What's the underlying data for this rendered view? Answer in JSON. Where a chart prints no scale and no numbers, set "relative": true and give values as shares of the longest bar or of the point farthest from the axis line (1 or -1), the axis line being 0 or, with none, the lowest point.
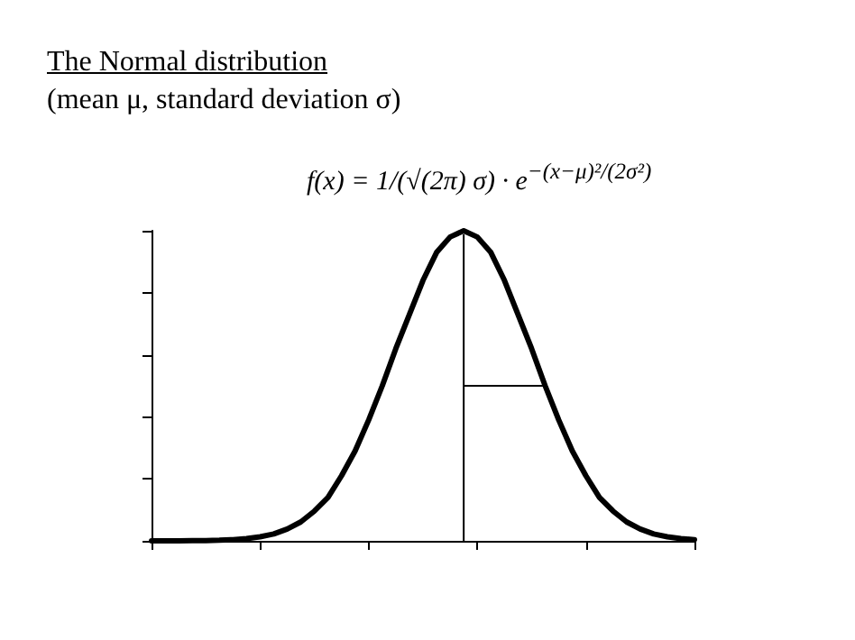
{
  "chart_data": {
    "type": "line",
    "title": "The Normal distribution",
    "subtitle": "(mean μ, standard deviation σ)",
    "annotations": [
      "f(x) = 1/(√(2π) σ) · e$^{−(x−μ)²/(2σ²)}$"
    ],
    "relative": true,
    "grid": false,
    "marker": "none",
    "line_style": "solid",
    "categories": [
      null,
      null,
      null,
      null,
      null,
      null,
      null,
      null,
      null,
      null,
      null,
      null,
      null,
      null,
      null,
      null,
      null,
      null,
      null,
      null,
      null,
      null,
      null,
      null,
      null,
      null,
      null,
      null,
      null,
      null,
      null,
      null,
      null,
      null,
      null,
      null,
      null,
      null,
      null,
      null,
      null
    ],
    "series": [
      {
        "color": "#000000",
        "values": [
          0,
          0,
          0,
          0.001,
          0.001,
          0.002,
          0.004,
          0.007,
          0.013,
          0.022,
          0.038,
          0.061,
          0.096,
          0.14,
          0.21,
          0.29,
          0.39,
          0.5,
          0.62,
          0.73,
          0.84,
          0.93,
          0.98,
          1,
          0.98,
          0.93,
          0.84,
          0.73,
          0.62,
          0.5,
          0.39,
          0.29,
          0.21,
          0.14,
          0.096,
          0.061,
          0.038,
          0.022,
          0.013,
          0.007,
          0.004
        ]
      }
    ]
  }
}
